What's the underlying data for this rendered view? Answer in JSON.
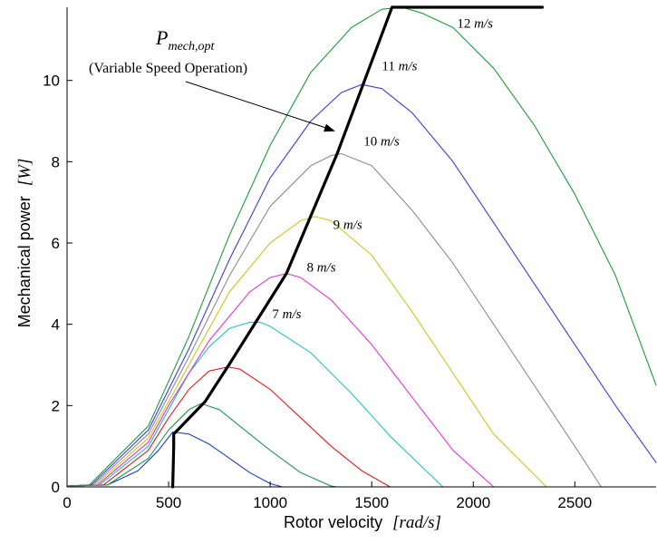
{
  "chart_data": {
    "type": "line",
    "xlabel": "Rotor velocity",
    "xunit": "[rad/s]",
    "ylabel": "Mechanical power",
    "yunit": "[W]",
    "xlim": [
      0,
      2900
    ],
    "ylim": [
      0,
      11.8
    ],
    "xticks": [
      0,
      500,
      1000,
      1500,
      2000,
      2500
    ],
    "yticks": [
      0,
      2,
      4,
      6,
      8,
      10
    ],
    "grid": false,
    "legend": "none",
    "series": [
      {
        "name": "7 m/s",
        "color": "#1e3cc8",
        "x": [
          0,
          200,
          350,
          450,
          520,
          600,
          700,
          800,
          900,
          1000,
          1060
        ],
        "y": [
          0.02,
          0.05,
          0.4,
          0.9,
          1.35,
          1.3,
          1.05,
          0.7,
          0.35,
          0.08,
          0
        ]
      },
      {
        "name": "8 m/s",
        "color": "#22964a",
        "x": [
          0,
          200,
          400,
          500,
          600,
          660,
          750,
          850,
          1000,
          1150,
          1300,
          1330
        ],
        "y": [
          0.02,
          0.05,
          0.7,
          1.4,
          1.9,
          2.05,
          1.9,
          1.5,
          0.9,
          0.35,
          0.02,
          0
        ]
      },
      {
        "name": "9 m/s",
        "color": "#e01e1e",
        "x": [
          0,
          180,
          400,
          500,
          600,
          700,
          790,
          850,
          1000,
          1150,
          1300,
          1450,
          1590
        ],
        "y": [
          0.02,
          0.05,
          0.9,
          1.7,
          2.4,
          2.85,
          2.95,
          2.9,
          2.4,
          1.7,
          1.0,
          0.4,
          0
        ]
      },
      {
        "name": "10 m/s",
        "color": "#1ec3c8",
        "x": [
          0,
          160,
          400,
          500,
          600,
          700,
          800,
          900,
          950,
          1000,
          1200,
          1400,
          1600,
          1850
        ],
        "y": [
          0.02,
          0.05,
          1.0,
          1.9,
          2.8,
          3.45,
          3.9,
          4.05,
          4.05,
          3.95,
          3.3,
          2.3,
          1.2,
          0
        ]
      },
      {
        "name": "8 m/s",
        "color": "#e632d2",
        "x": [
          0,
          150,
          400,
          500,
          700,
          900,
          1000,
          1080,
          1150,
          1300,
          1500,
          1700,
          1900,
          2100
        ],
        "y": [
          0.02,
          0.05,
          1.1,
          2.0,
          3.6,
          4.8,
          5.15,
          5.25,
          5.15,
          4.6,
          3.5,
          2.2,
          0.9,
          0
        ]
      },
      {
        "name": "9 m/s",
        "color": "#c8c81e",
        "x": [
          0,
          140,
          400,
          600,
          800,
          1000,
          1150,
          1220,
          1300,
          1500,
          1700,
          1900,
          2100,
          2360
        ],
        "y": [
          0.02,
          0.05,
          1.2,
          3.0,
          4.8,
          6.0,
          6.55,
          6.65,
          6.55,
          5.7,
          4.3,
          2.8,
          1.3,
          0
        ]
      },
      {
        "name": "10 m/s",
        "color": "#8c8c8c",
        "x": [
          0,
          130,
          400,
          600,
          800,
          1000,
          1200,
          1300,
          1350,
          1500,
          1700,
          1900,
          2100,
          2300,
          2500,
          2630
        ],
        "y": [
          0.02,
          0.05,
          1.3,
          3.2,
          5.2,
          6.9,
          7.9,
          8.15,
          8.2,
          7.9,
          6.8,
          5.5,
          4.0,
          2.5,
          1.0,
          0
        ]
      },
      {
        "name": "11 m/s",
        "color": "#3c3cdc",
        "x": [
          0,
          120,
          400,
          600,
          800,
          1000,
          1200,
          1350,
          1450,
          1550,
          1700,
          1900,
          2100,
          2300,
          2500,
          2700,
          2900
        ],
        "y": [
          0.02,
          0.05,
          1.4,
          3.4,
          5.6,
          7.6,
          9.0,
          9.7,
          9.9,
          9.8,
          9.2,
          8.0,
          6.5,
          5.0,
          3.5,
          2.0,
          0.6
        ]
      },
      {
        "name": "12 m/s",
        "color": "#1e9b3c",
        "x": [
          0,
          110,
          400,
          600,
          800,
          1000,
          1200,
          1400,
          1550,
          1650,
          1750,
          1900,
          2100,
          2300,
          2500,
          2700,
          2900
        ],
        "y": [
          0.02,
          0.05,
          1.5,
          3.7,
          6.2,
          8.4,
          10.2,
          11.3,
          11.75,
          11.8,
          11.65,
          11.3,
          10.3,
          8.9,
          7.2,
          5.2,
          2.5
        ]
      },
      {
        "name": "P_mech,opt",
        "color": "#000000",
        "bold": true,
        "x": [
          520,
          525,
          525,
          680,
          790,
          1080,
          1330,
          1600,
          2340
        ],
        "y": [
          0,
          1.0,
          1.3,
          2.1,
          2.95,
          5.25,
          8.2,
          11.8,
          11.8
        ]
      }
    ],
    "curve_labels": [
      {
        "text": "7 m/s",
        "x": 1010,
        "y": 4.15
      },
      {
        "text": "8 m/s",
        "x": 1180,
        "y": 5.3
      },
      {
        "text": "9 m/s",
        "x": 1310,
        "y": 6.35
      },
      {
        "text": "10 m/s",
        "x": 1460,
        "y": 8.4
      },
      {
        "text": "11 m/s",
        "x": 1550,
        "y": 10.25
      },
      {
        "text": "12 m/s",
        "x": 1920,
        "y": 11.3
      }
    ],
    "annotation": {
      "title_main": "P",
      "title_sub": "mech,opt",
      "text": "(Variable Speed Operation)",
      "arrow_to": {
        "x": 1320,
        "y": 8.75
      }
    }
  }
}
